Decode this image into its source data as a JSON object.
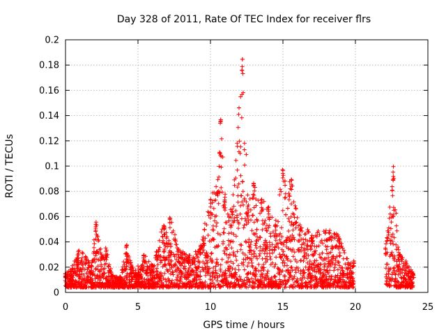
{
  "chart_data": {
    "type": "scatter",
    "title": "Day 328 of 2011, Rate Of TEC Index for receiver flrs",
    "xlabel": "GPS time / hours",
    "ylabel": "ROTI / TECUs",
    "xlim": [
      0,
      25
    ],
    "ylim": [
      0,
      0.2
    ],
    "xticks": [
      0,
      5,
      10,
      15,
      20,
      25
    ],
    "yticks": [
      0,
      0.02,
      0.04,
      0.06,
      0.08,
      0.1,
      0.12,
      0.14,
      0.16,
      0.18,
      0.2
    ],
    "grid": true,
    "marker": "+",
    "color": "#ff0000",
    "data_gap_hours": [
      19.9,
      22.1
    ],
    "envelope": [
      {
        "x": 0.0,
        "y_max": 0.015
      },
      {
        "x": 0.5,
        "y_max": 0.022
      },
      {
        "x": 0.9,
        "y_max": 0.034
      },
      {
        "x": 1.4,
        "y_max": 0.03
      },
      {
        "x": 1.8,
        "y_max": 0.022
      },
      {
        "x": 2.1,
        "y_max": 0.059
      },
      {
        "x": 2.5,
        "y_max": 0.03
      },
      {
        "x": 2.8,
        "y_max": 0.037
      },
      {
        "x": 3.2,
        "y_max": 0.014
      },
      {
        "x": 3.8,
        "y_max": 0.013
      },
      {
        "x": 4.2,
        "y_max": 0.04
      },
      {
        "x": 4.6,
        "y_max": 0.02
      },
      {
        "x": 5.2,
        "y_max": 0.022
      },
      {
        "x": 5.4,
        "y_max": 0.031
      },
      {
        "x": 6.0,
        "y_max": 0.022
      },
      {
        "x": 6.8,
        "y_max": 0.057
      },
      {
        "x": 7.2,
        "y_max": 0.062
      },
      {
        "x": 7.8,
        "y_max": 0.035
      },
      {
        "x": 8.5,
        "y_max": 0.03
      },
      {
        "x": 9.3,
        "y_max": 0.037
      },
      {
        "x": 10.0,
        "y_max": 0.075
      },
      {
        "x": 10.5,
        "y_max": 0.09
      },
      {
        "x": 10.7,
        "y_max": 0.137
      },
      {
        "x": 11.0,
        "y_max": 0.082
      },
      {
        "x": 11.5,
        "y_max": 0.07
      },
      {
        "x": 12.2,
        "y_max": 0.185
      },
      {
        "x": 12.6,
        "y_max": 0.07
      },
      {
        "x": 13.0,
        "y_max": 0.088
      },
      {
        "x": 13.5,
        "y_max": 0.075
      },
      {
        "x": 14.0,
        "y_max": 0.07
      },
      {
        "x": 14.5,
        "y_max": 0.057
      },
      {
        "x": 15.0,
        "y_max": 0.098
      },
      {
        "x": 15.6,
        "y_max": 0.09
      },
      {
        "x": 16.2,
        "y_max": 0.055
      },
      {
        "x": 17.0,
        "y_max": 0.048
      },
      {
        "x": 18.2,
        "y_max": 0.05
      },
      {
        "x": 18.9,
        "y_max": 0.045
      },
      {
        "x": 19.5,
        "y_max": 0.025
      },
      {
        "x": 19.9,
        "y_max": 0.025
      },
      {
        "x": 22.1,
        "y_max": 0.039
      },
      {
        "x": 22.6,
        "y_max": 0.1
      },
      {
        "x": 23.0,
        "y_max": 0.034
      },
      {
        "x": 23.5,
        "y_max": 0.025
      },
      {
        "x": 24.0,
        "y_max": 0.015
      }
    ]
  }
}
